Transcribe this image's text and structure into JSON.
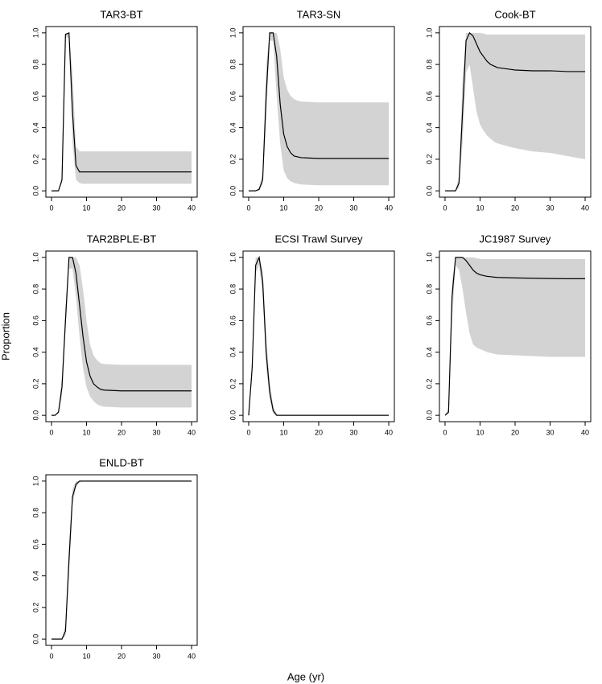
{
  "ylabel": "Proportion",
  "xlabel": "Age (yr)",
  "chart_data": [
    {
      "type": "line",
      "title": "TAR3-BT",
      "x": [
        0,
        1,
        2,
        3,
        4,
        5,
        6,
        7,
        8,
        9,
        10,
        11,
        12,
        13,
        14,
        15,
        20,
        25,
        30,
        35,
        40
      ],
      "xlim": [
        -1.6,
        41.6
      ],
      "ylim": [
        -0.04,
        1.04
      ],
      "xticks": [
        0,
        10,
        20,
        30,
        40
      ],
      "yticks": [
        {
          "value": 0,
          "label": "0.0"
        },
        0.2,
        0.4,
        0.6,
        0.8,
        {
          "value": 1,
          "label": "1.0"
        }
      ],
      "series": [
        {
          "color": "#000000",
          "band_color": "#d3d3d3",
          "values": [
            0,
            0,
            0,
            0.07,
            0.99,
            1.0,
            0.5,
            0.16,
            0.12,
            0.12,
            0.12,
            0.12,
            0.12,
            0.12,
            0.12,
            0.12,
            0.12,
            0.12,
            0.12,
            0.12,
            0.12
          ],
          "lower": [
            0,
            0,
            0,
            0.05,
            0.97,
            0.97,
            0.3,
            0.07,
            0.05,
            0.045,
            0.045,
            0.045,
            0.045,
            0.045,
            0.045,
            0.045,
            0.045,
            0.045,
            0.045,
            0.045,
            0.045
          ],
          "upper": [
            0,
            0,
            0,
            0.09,
            1,
            1,
            0.75,
            0.28,
            0.25,
            0.25,
            0.25,
            0.25,
            0.25,
            0.25,
            0.25,
            0.25,
            0.25,
            0.25,
            0.25,
            0.25,
            0.25
          ]
        }
      ]
    },
    {
      "type": "line",
      "title": "TAR3-SN",
      "x": [
        0,
        1,
        2,
        3,
        4,
        5,
        6,
        7,
        8,
        9,
        10,
        11,
        12,
        13,
        14,
        15,
        20,
        25,
        30,
        35,
        40
      ],
      "xlim": [
        -1.6,
        41.6
      ],
      "ylim": [
        -0.04,
        1.04
      ],
      "xticks": [
        0,
        10,
        20,
        30,
        40
      ],
      "yticks": [
        {
          "value": 0,
          "label": "0.0"
        },
        0.2,
        0.4,
        0.6,
        0.8,
        {
          "value": 1,
          "label": "1.0"
        }
      ],
      "series": [
        {
          "color": "#000000",
          "band_color": "#d3d3d3",
          "values": [
            0,
            0,
            0,
            0.01,
            0.07,
            0.6,
            1.0,
            1.0,
            0.85,
            0.55,
            0.36,
            0.28,
            0.24,
            0.22,
            0.215,
            0.21,
            0.205,
            0.205,
            0.205,
            0.205,
            0.205
          ],
          "lower": [
            0,
            0,
            0,
            0,
            0.04,
            0.45,
            0.95,
            0.95,
            0.6,
            0.3,
            0.13,
            0.08,
            0.06,
            0.05,
            0.045,
            0.04,
            0.035,
            0.035,
            0.035,
            0.035,
            0.035
          ],
          "upper": [
            0,
            0,
            0,
            0.02,
            0.12,
            0.8,
            1,
            1,
            1,
            0.9,
            0.72,
            0.64,
            0.6,
            0.58,
            0.57,
            0.565,
            0.56,
            0.56,
            0.56,
            0.56,
            0.56
          ]
        }
      ]
    },
    {
      "type": "line",
      "title": "Cook-BT",
      "x": [
        0,
        1,
        2,
        3,
        4,
        5,
        6,
        7,
        8,
        9,
        10,
        11,
        12,
        13,
        14,
        15,
        20,
        25,
        30,
        35,
        40
      ],
      "xlim": [
        -1.6,
        41.6
      ],
      "ylim": [
        -0.04,
        1.04
      ],
      "xticks": [
        0,
        10,
        20,
        30,
        40
      ],
      "yticks": [
        {
          "value": 0,
          "label": "0.0"
        },
        0.2,
        0.4,
        0.6,
        0.8,
        {
          "value": 1,
          "label": "1.0"
        }
      ],
      "series": [
        {
          "color": "#000000",
          "band_color": "#d3d3d3",
          "values": [
            0,
            0,
            0,
            0,
            0.05,
            0.5,
            0.95,
            1.0,
            0.98,
            0.93,
            0.88,
            0.85,
            0.82,
            0.8,
            0.79,
            0.78,
            0.765,
            0.76,
            0.76,
            0.755,
            0.755
          ],
          "lower": [
            0,
            0,
            0,
            0,
            0.02,
            0.3,
            0.75,
            0.8,
            0.65,
            0.5,
            0.42,
            0.38,
            0.35,
            0.33,
            0.31,
            0.3,
            0.27,
            0.25,
            0.24,
            0.22,
            0.2
          ],
          "upper": [
            0,
            0,
            0,
            0,
            0.1,
            0.7,
            1,
            1,
            1,
            1,
            1,
            0.995,
            0.99,
            0.99,
            0.99,
            0.99,
            0.99,
            0.99,
            0.99,
            0.99,
            0.99
          ]
        }
      ]
    },
    {
      "type": "line",
      "title": "TAR2BPLE-BT",
      "x": [
        0,
        1,
        2,
        3,
        4,
        5,
        6,
        7,
        8,
        9,
        10,
        11,
        12,
        13,
        14,
        15,
        20,
        25,
        30,
        35,
        40
      ],
      "xlim": [
        -1.6,
        41.6
      ],
      "ylim": [
        -0.04,
        1.04
      ],
      "xticks": [
        0,
        10,
        20,
        30,
        40
      ],
      "yticks": [
        {
          "value": 0,
          "label": "0.0"
        },
        0.2,
        0.4,
        0.6,
        0.8,
        {
          "value": 1,
          "label": "1.0"
        }
      ],
      "series": [
        {
          "color": "#000000",
          "band_color": "#d3d3d3",
          "values": [
            0,
            0,
            0.02,
            0.18,
            0.6,
            1.0,
            1.0,
            0.9,
            0.7,
            0.5,
            0.34,
            0.25,
            0.2,
            0.18,
            0.165,
            0.16,
            0.155,
            0.155,
            0.155,
            0.155,
            0.155
          ],
          "lower": [
            0,
            0,
            0.01,
            0.12,
            0.55,
            0.93,
            0.93,
            0.75,
            0.5,
            0.3,
            0.18,
            0.12,
            0.09,
            0.07,
            0.06,
            0.055,
            0.05,
            0.05,
            0.05,
            0.05,
            0.05
          ],
          "upper": [
            0,
            0,
            0.03,
            0.25,
            0.7,
            1,
            1,
            1,
            0.95,
            0.8,
            0.6,
            0.45,
            0.38,
            0.35,
            0.33,
            0.325,
            0.32,
            0.32,
            0.32,
            0.32,
            0.32
          ]
        }
      ]
    },
    {
      "type": "line",
      "title": "ECSI Trawl Survey",
      "x": [
        0,
        1,
        2,
        3,
        4,
        5,
        6,
        7,
        8,
        9,
        10,
        11,
        12,
        13,
        14,
        15,
        20,
        25,
        30,
        35,
        40
      ],
      "xlim": [
        -1.6,
        41.6
      ],
      "ylim": [
        -0.04,
        1.04
      ],
      "xticks": [
        0,
        10,
        20,
        30,
        40
      ],
      "yticks": [
        {
          "value": 0,
          "label": "0.0"
        },
        0.2,
        0.4,
        0.6,
        0.8,
        {
          "value": 1,
          "label": "1.0"
        }
      ],
      "series": [
        {
          "color": "#000000",
          "band_color": "#d3d3d3",
          "values": [
            0,
            0.3,
            0.95,
            1.0,
            0.85,
            0.4,
            0.15,
            0.03,
            0,
            0,
            0,
            0,
            0,
            0,
            0,
            0,
            0,
            0,
            0,
            0,
            0
          ],
          "lower": [
            0,
            0.25,
            0.9,
            0.95,
            0.75,
            0.3,
            0.1,
            0.01,
            0,
            0,
            0,
            0,
            0,
            0,
            0,
            0,
            0,
            0,
            0,
            0,
            0
          ],
          "upper": [
            0,
            0.35,
            1,
            1,
            0.92,
            0.5,
            0.22,
            0.06,
            0.01,
            0,
            0,
            0,
            0,
            0,
            0,
            0,
            0,
            0,
            0,
            0,
            0
          ]
        }
      ]
    },
    {
      "type": "line",
      "title": "JC1987 Survey",
      "x": [
        0,
        1,
        2,
        3,
        4,
        5,
        6,
        7,
        8,
        9,
        10,
        11,
        12,
        13,
        14,
        15,
        20,
        25,
        30,
        35,
        40
      ],
      "xlim": [
        -1.6,
        41.6
      ],
      "ylim": [
        -0.04,
        1.04
      ],
      "xticks": [
        0,
        10,
        20,
        30,
        40
      ],
      "yticks": [
        {
          "value": 0,
          "label": "0.0"
        },
        0.2,
        0.4,
        0.6,
        0.8,
        {
          "value": 1,
          "label": "1.0"
        }
      ],
      "series": [
        {
          "color": "#000000",
          "band_color": "#d3d3d3",
          "values": [
            0,
            0.02,
            0.75,
            1,
            1,
            1,
            0.98,
            0.95,
            0.92,
            0.9,
            0.89,
            0.885,
            0.88,
            0.878,
            0.875,
            0.873,
            0.87,
            0.868,
            0.866,
            0.865,
            0.865
          ],
          "lower": [
            0,
            0.01,
            0.6,
            0.95,
            0.92,
            0.8,
            0.65,
            0.52,
            0.45,
            0.43,
            0.42,
            0.41,
            0.4,
            0.395,
            0.39,
            0.385,
            0.38,
            0.375,
            0.37,
            0.37,
            0.37
          ],
          "upper": [
            0,
            0.05,
            0.85,
            1,
            1,
            1,
            1,
            1,
            1,
            0.995,
            0.99,
            0.99,
            0.99,
            0.99,
            0.99,
            0.99,
            0.99,
            0.99,
            0.99,
            0.99,
            0.99
          ]
        }
      ]
    },
    {
      "type": "line",
      "title": "ENLD-BT",
      "x": [
        0,
        1,
        2,
        3,
        4,
        5,
        6,
        7,
        8,
        9,
        10,
        11,
        12,
        13,
        14,
        15,
        20,
        25,
        30,
        35,
        40
      ],
      "xlim": [
        -1.6,
        41.6
      ],
      "ylim": [
        -0.04,
        1.04
      ],
      "xticks": [
        0,
        10,
        20,
        30,
        40
      ],
      "yticks": [
        {
          "value": 0,
          "label": "0.0"
        },
        0.2,
        0.4,
        0.6,
        0.8,
        {
          "value": 1,
          "label": "1.0"
        }
      ],
      "series": [
        {
          "color": "#000000",
          "band_color": "#d3d3d3",
          "values": [
            0,
            0,
            0,
            0,
            0.05,
            0.5,
            0.9,
            0.98,
            1,
            1,
            1,
            1,
            1,
            1,
            1,
            1,
            1,
            1,
            1,
            1,
            1
          ],
          "lower": [
            0,
            0,
            0,
            0,
            0.02,
            0.4,
            0.85,
            0.96,
            0.99,
            1,
            1,
            1,
            1,
            1,
            1,
            1,
            1,
            1,
            1,
            1,
            1
          ],
          "upper": [
            0,
            0,
            0,
            0,
            0.1,
            0.6,
            0.95,
            1,
            1,
            1,
            1,
            1,
            1,
            1,
            1,
            1,
            1,
            1,
            1,
            1,
            1
          ]
        }
      ]
    }
  ]
}
